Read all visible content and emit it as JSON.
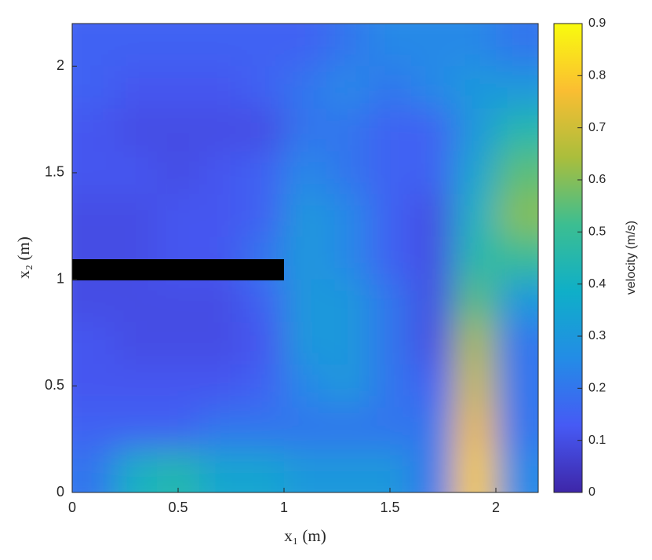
{
  "chart_data": {
    "type": "heatmap",
    "xlabel": "x₁ (m)",
    "ylabel": "x₂ (m)",
    "colorbar_label": "velocity (m/s)",
    "xlim": [
      0,
      2.2
    ],
    "ylim": [
      0,
      2.2
    ],
    "xticks": [
      0,
      0.5,
      1,
      1.5,
      2
    ],
    "yticks": [
      0,
      0.5,
      1,
      1.5,
      2
    ],
    "clim": [
      0,
      0.9
    ],
    "cticks": [
      0,
      0.1,
      0.2,
      0.3,
      0.4,
      0.5,
      0.6,
      0.7,
      0.8,
      0.9
    ],
    "colormap": [
      "#3e26a8",
      "#465af5",
      "#238ce6",
      "#0fafc8",
      "#3cbe91",
      "#aabe3c",
      "#fabe32",
      "#f9fb0e"
    ],
    "x": [
      0.1,
      0.3,
      0.5,
      0.7,
      0.9,
      1.1,
      1.3,
      1.5,
      1.7,
      1.9,
      2.1
    ],
    "y": [
      2.1,
      1.9,
      1.7,
      1.5,
      1.3,
      1.1,
      0.9,
      0.7,
      0.5,
      0.3,
      0.1
    ],
    "z": [
      [
        0.15,
        0.15,
        0.15,
        0.15,
        0.15,
        0.15,
        0.2,
        0.25,
        0.25,
        0.25,
        0.2
      ],
      [
        0.15,
        0.12,
        0.12,
        0.12,
        0.15,
        0.2,
        0.25,
        0.2,
        0.25,
        0.3,
        0.3
      ],
      [
        0.12,
        0.1,
        0.1,
        0.1,
        0.1,
        0.2,
        0.2,
        0.15,
        0.15,
        0.3,
        0.45
      ],
      [
        0.12,
        0.12,
        0.1,
        0.12,
        0.15,
        0.25,
        0.2,
        0.15,
        0.15,
        0.35,
        0.55
      ],
      [
        0.1,
        0.1,
        0.12,
        0.12,
        0.15,
        0.3,
        0.25,
        0.15,
        0.1,
        0.4,
        0.6
      ],
      [
        0.1,
        0.1,
        0.12,
        0.12,
        0.2,
        0.3,
        0.25,
        0.15,
        0.1,
        0.45,
        0.5
      ],
      [
        0.1,
        0.1,
        0.1,
        0.1,
        0.15,
        0.3,
        0.3,
        0.2,
        0.1,
        0.55,
        0.3
      ],
      [
        0.12,
        0.1,
        0.1,
        0.1,
        0.12,
        0.3,
        0.3,
        0.2,
        0.1,
        0.65,
        0.2
      ],
      [
        0.12,
        0.12,
        0.12,
        0.12,
        0.15,
        0.25,
        0.3,
        0.2,
        0.15,
        0.7,
        0.2
      ],
      [
        0.15,
        0.15,
        0.15,
        0.2,
        0.2,
        0.2,
        0.2,
        0.2,
        0.2,
        0.75,
        0.2
      ],
      [
        0.2,
        0.4,
        0.45,
        0.35,
        0.35,
        0.3,
        0.3,
        0.3,
        0.2,
        0.8,
        0.25
      ]
    ]
  }
}
